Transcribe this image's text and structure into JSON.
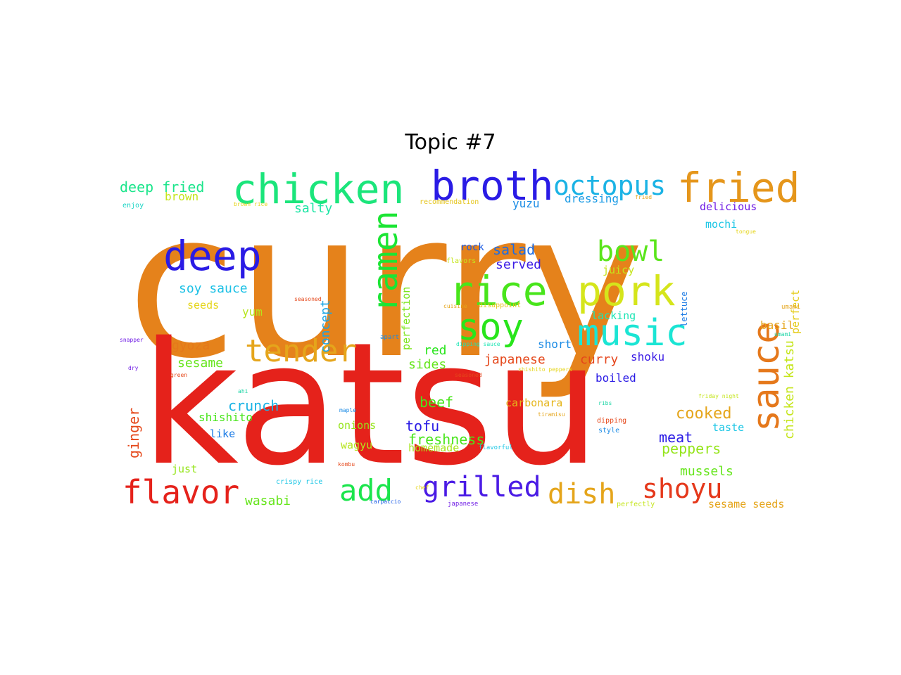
{
  "title": "Topic #7",
  "words": [
    {
      "text": "curry",
      "color": "#e5821b"
    },
    {
      "text": "katsu",
      "color": "#e5221b"
    },
    {
      "text": "chicken",
      "color": "#1be57b"
    },
    {
      "text": "broth",
      "color": "#2a1be5"
    },
    {
      "text": "octopus",
      "color": "#1bb3e5"
    },
    {
      "text": "fried",
      "color": "#e5961b"
    },
    {
      "text": "deep",
      "color": "#2a1be5"
    },
    {
      "text": "ramen",
      "color": "#1be534"
    },
    {
      "text": "rice",
      "color": "#48e51b"
    },
    {
      "text": "pork",
      "color": "#d5e51b"
    },
    {
      "text": "bowl",
      "color": "#5ae51b"
    },
    {
      "text": "soy",
      "color": "#28e51b"
    },
    {
      "text": "music",
      "color": "#1be5d4"
    },
    {
      "text": "tender",
      "color": "#e5a51b"
    },
    {
      "text": "sauce",
      "color": "#e5781b"
    },
    {
      "text": "flavor",
      "color": "#e5221b"
    },
    {
      "text": "add",
      "color": "#1be54c"
    },
    {
      "text": "grilled",
      "color": "#4a1be5"
    },
    {
      "text": "dish",
      "color": "#e5a51b"
    },
    {
      "text": "shoyu",
      "color": "#e5381b"
    },
    {
      "text": "deep fried",
      "color": "#1be58b"
    },
    {
      "text": "brown",
      "color": "#c5e51b"
    },
    {
      "text": "salty",
      "color": "#1be5a4"
    },
    {
      "text": "yuzu",
      "color": "#1b8ce5"
    },
    {
      "text": "dressing",
      "color": "#1b9be5"
    },
    {
      "text": "delicious",
      "color": "#6f1be5"
    },
    {
      "text": "mochi",
      "color": "#1bc6e5"
    },
    {
      "text": "salad",
      "color": "#1b6ce5"
    },
    {
      "text": "rock",
      "color": "#1b5be5"
    },
    {
      "text": "served",
      "color": "#3b1be5"
    },
    {
      "text": "juicy",
      "color": "#c5e51b"
    },
    {
      "text": "lacking",
      "color": "#1be5b4"
    },
    {
      "text": "soy sauce",
      "color": "#1bc0e5"
    },
    {
      "text": "seeds",
      "color": "#e5d51b"
    },
    {
      "text": "yum",
      "color": "#b5e51b"
    },
    {
      "text": "concept",
      "color": "#1ba5e5"
    },
    {
      "text": "perfection",
      "color": "#7be51b"
    },
    {
      "text": "perfect",
      "color": "#e5cc1b"
    },
    {
      "text": "lettuce",
      "color": "#1b7be5"
    },
    {
      "text": "gyoza",
      "color": "#e5781b"
    },
    {
      "text": "sesame",
      "color": "#65e51b"
    },
    {
      "text": "red",
      "color": "#28e51b"
    },
    {
      "text": "sides",
      "color": "#65e51b"
    },
    {
      "text": "japanese",
      "color": "#e5481b"
    },
    {
      "text": "curry",
      "color": "#e5451b"
    },
    {
      "text": "short",
      "color": "#1b8be5"
    },
    {
      "text": "shoku",
      "color": "#3a1be5"
    },
    {
      "text": "basil",
      "color": "#e5a51b"
    },
    {
      "text": "boiled",
      "color": "#2a1be5"
    },
    {
      "text": "crunch",
      "color": "#1bb3e5"
    },
    {
      "text": "beef",
      "color": "#48e51b"
    },
    {
      "text": "carbonara",
      "color": "#e5b51b"
    },
    {
      "text": "cooked",
      "color": "#e5a51b"
    },
    {
      "text": "chicken katsu",
      "color": "#c5e51b"
    },
    {
      "text": "shishito",
      "color": "#48e51b"
    },
    {
      "text": "tofu",
      "color": "#2a1be5"
    },
    {
      "text": "meat",
      "color": "#2a1be5"
    },
    {
      "text": "ginger",
      "color": "#e5481b"
    },
    {
      "text": "like",
      "color": "#1b7be5"
    },
    {
      "text": "onions",
      "color": "#95e51b"
    },
    {
      "text": "freshness",
      "color": "#48e51b"
    },
    {
      "text": "peppers",
      "color": "#95e51b"
    },
    {
      "text": "taste",
      "color": "#1bc6e5"
    },
    {
      "text": "wagyu",
      "color": "#b5e51b"
    },
    {
      "text": "homemade",
      "color": "#a5e51b"
    },
    {
      "text": "just",
      "color": "#95e51b"
    },
    {
      "text": "mussels",
      "color": "#65e51b"
    },
    {
      "text": "wasabi",
      "color": "#65e51b"
    },
    {
      "text": "sesame seeds",
      "color": "#e5a51b"
    },
    {
      "text": "enjoy",
      "color": "#1bd5c5"
    },
    {
      "text": "brown rice",
      "color": "#e5d51b"
    },
    {
      "text": "recommendation",
      "color": "#e5c51b"
    },
    {
      "text": "umami",
      "color": "#e5a51b"
    },
    {
      "text": "tongue",
      "color": "#e5d51b"
    },
    {
      "text": "flavors",
      "color": "#c5e51b"
    },
    {
      "text": "seasoned",
      "color": "#e5481b"
    },
    {
      "text": "cuisine",
      "color": "#e5a51b"
    },
    {
      "text": "disappoint",
      "color": "#e5c51b"
    },
    {
      "text": "umami",
      "color": "#1bd5a5"
    },
    {
      "text": "snapper",
      "color": "#6f1be5"
    },
    {
      "text": "apart",
      "color": "#1b8be5"
    },
    {
      "text": "dipping sauce",
      "color": "#1be5b4"
    },
    {
      "text": "fried",
      "color": "#e5a51b"
    },
    {
      "text": "dry",
      "color": "#6f1be5"
    },
    {
      "text": "green",
      "color": "#e5481b"
    },
    {
      "text": "shishito peppers",
      "color": "#e5d51b"
    },
    {
      "text": "seasoned",
      "color": "#e5481b"
    },
    {
      "text": "ahi",
      "color": "#1bd5a5"
    },
    {
      "text": "friday night",
      "color": "#c5e51b"
    },
    {
      "text": "ribs",
      "color": "#1bd5a5"
    },
    {
      "text": "maple",
      "color": "#1b8be5"
    },
    {
      "text": "tiramisu",
      "color": "#e5a51b"
    },
    {
      "text": "dipping",
      "color": "#e5481b"
    },
    {
      "text": "style",
      "color": "#1b8be5"
    },
    {
      "text": "flavorful",
      "color": "#1bc6e5"
    },
    {
      "text": "kombu",
      "color": "#e5481b"
    },
    {
      "text": "crispy rice",
      "color": "#1bc6e5"
    },
    {
      "text": "carpaccio",
      "color": "#1b5be5"
    },
    {
      "text": "japanese",
      "color": "#6f1be5"
    },
    {
      "text": "perfectly",
      "color": "#c5e51b"
    },
    {
      "text": "chef",
      "color": "#e5d51b"
    }
  ]
}
